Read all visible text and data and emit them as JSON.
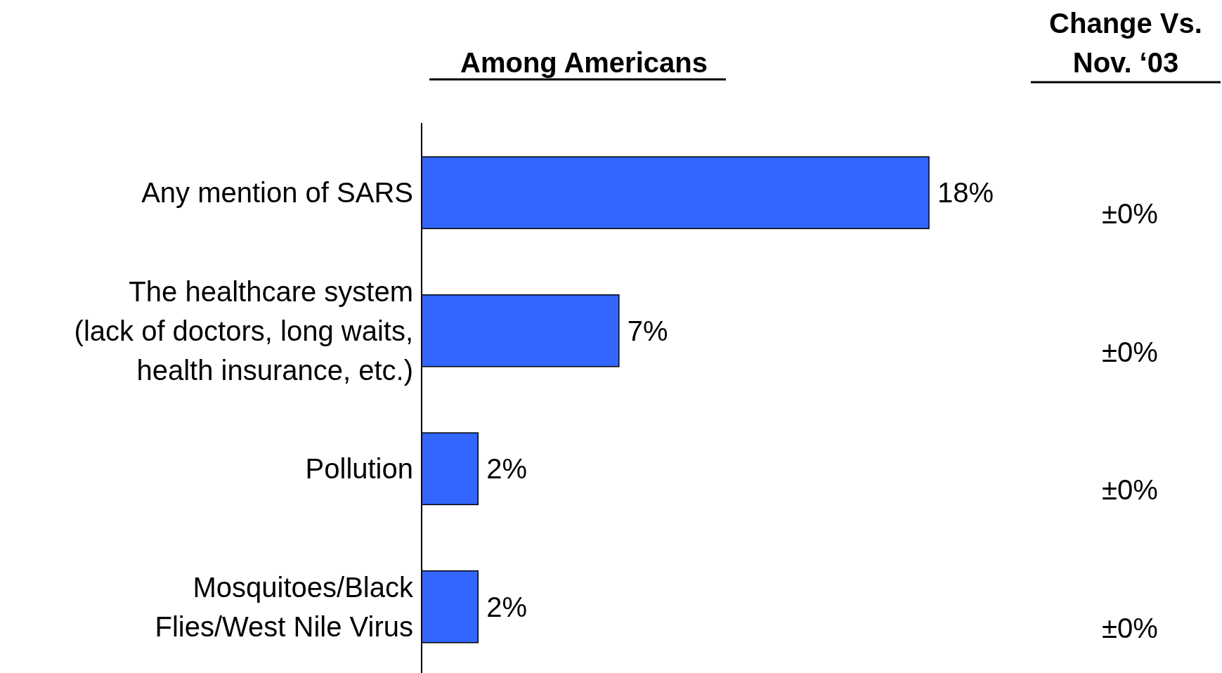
{
  "chart_data": {
    "type": "bar",
    "orientation": "horizontal",
    "title": "Among Americans",
    "categories": [
      "Any mention of SARS",
      "The healthcare system\n(lack of doctors, long waits,\nhealth insurance, etc.)",
      "Pollution",
      "Mosquitoes/Black\nFlies/West Nile Virus"
    ],
    "values": [
      18,
      7,
      2,
      2
    ],
    "color": "#3366ff",
    "value_labels": [
      "18%",
      "7%",
      "2%",
      "2%"
    ],
    "annotations": [
      "Change Vs.\nNov. ‘03",
      "±0%",
      "±0%",
      "±0%",
      "±0%"
    ]
  }
}
